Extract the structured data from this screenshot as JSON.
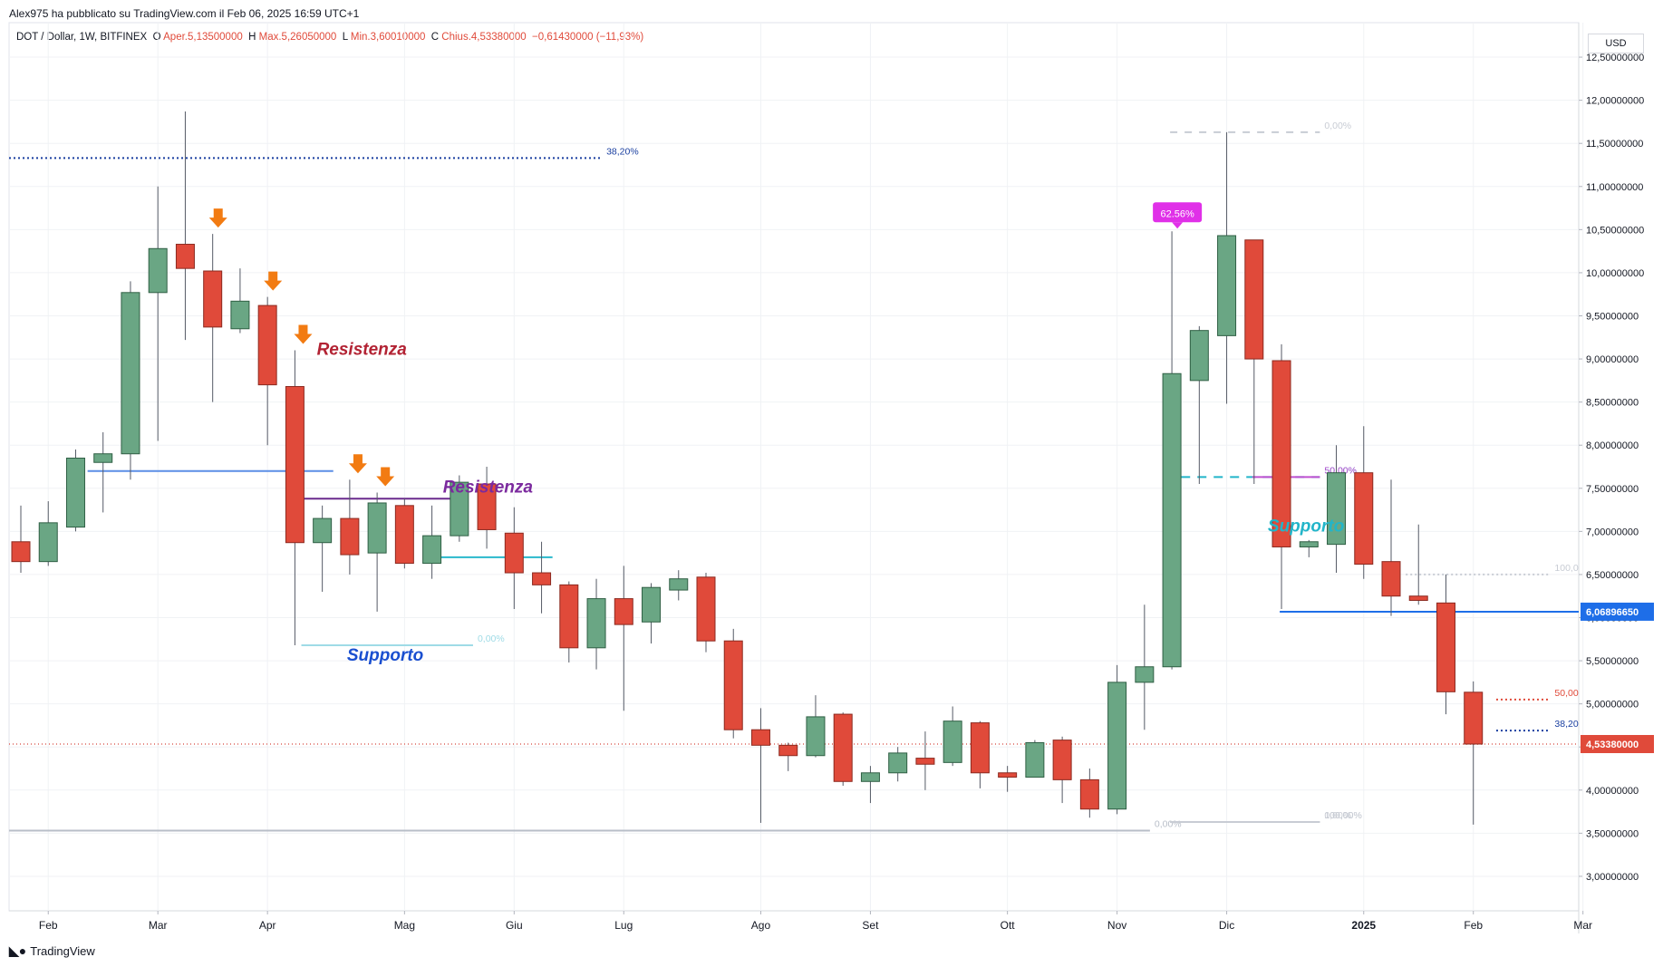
{
  "header": {
    "published": "Alex975 ha pubblicato su TradingView.com il Feb 06, 2025 16:59 UTC+1",
    "symbol": "DOT / Dollar, 1W, BITFINEX",
    "open_label": "O",
    "open": "Aper.5,13500000",
    "high_label": "H",
    "high": "Max.5,26050000",
    "low_label": "L",
    "low": "Min.3,60010000",
    "close_label": "C",
    "close": "Chius.4,53380000",
    "change": "−0,61430000 (−11,93%)"
  },
  "currency": "USD",
  "footer": {
    "brand": "TradingView",
    "logo": "tradingview-logo-icon"
  },
  "colors": {
    "up": "#6aa684",
    "down": "#e04a3a",
    "up_border": "#2f5f44",
    "down_border": "#8c2a20"
  },
  "chart_data": {
    "type": "candlestick",
    "title": "DOT / Dollar, 1W, BITFINEX",
    "ylabel": "USD",
    "ylim": [
      2.6,
      12.9
    ],
    "y_ticks": [
      "3,00000000",
      "3,50000000",
      "4,00000000",
      "4,50000000",
      "5,00000000",
      "5,50000000",
      "6,00000000",
      "6,50000000",
      "7,00000000",
      "7,50000000",
      "8,00000000",
      "8,50000000",
      "9,00000000",
      "9,50000000",
      "10,00000000",
      "10,50000000",
      "11,00000000",
      "11,50000000",
      "12,00000000",
      "12,50000000"
    ],
    "x_ticks": [
      {
        "label": "Feb",
        "bar": 1
      },
      {
        "label": "Mar",
        "bar": 5
      },
      {
        "label": "Apr",
        "bar": 9
      },
      {
        "label": "Mag",
        "bar": 14
      },
      {
        "label": "Giu",
        "bar": 18
      },
      {
        "label": "Lug",
        "bar": 22
      },
      {
        "label": "Ago",
        "bar": 27
      },
      {
        "label": "Set",
        "bar": 31
      },
      {
        "label": "Ott",
        "bar": 36
      },
      {
        "label": "Nov",
        "bar": 40
      },
      {
        "label": "Dic",
        "bar": 44
      },
      {
        "label": "2025",
        "bar": 49
      },
      {
        "label": "Feb",
        "bar": 53
      },
      {
        "label": "Mar",
        "bar": 57
      }
    ],
    "candles": [
      {
        "o": 6.88,
        "h": 7.3,
        "l": 6.52,
        "c": 6.65
      },
      {
        "o": 6.65,
        "h": 7.35,
        "l": 6.6,
        "c": 7.1
      },
      {
        "o": 7.05,
        "h": 7.95,
        "l": 7.0,
        "c": 7.85
      },
      {
        "o": 7.8,
        "h": 8.15,
        "l": 7.22,
        "c": 7.9
      },
      {
        "o": 7.9,
        "h": 9.9,
        "l": 7.6,
        "c": 9.77
      },
      {
        "o": 9.77,
        "h": 11.0,
        "l": 8.05,
        "c": 10.28
      },
      {
        "o": 10.33,
        "h": 11.87,
        "l": 9.22,
        "c": 10.05
      },
      {
        "o": 10.02,
        "h": 10.45,
        "l": 8.5,
        "c": 9.37
      },
      {
        "o": 9.35,
        "h": 10.05,
        "l": 9.3,
        "c": 9.67
      },
      {
        "o": 9.62,
        "h": 9.72,
        "l": 8.0,
        "c": 8.7
      },
      {
        "o": 8.68,
        "h": 9.1,
        "l": 5.68,
        "c": 6.87
      },
      {
        "o": 6.87,
        "h": 7.3,
        "l": 6.3,
        "c": 7.15
      },
      {
        "o": 7.15,
        "h": 7.6,
        "l": 6.5,
        "c": 6.73
      },
      {
        "o": 6.75,
        "h": 7.45,
        "l": 6.07,
        "c": 7.33
      },
      {
        "o": 7.3,
        "h": 7.38,
        "l": 6.57,
        "c": 6.63
      },
      {
        "o": 6.63,
        "h": 7.3,
        "l": 6.45,
        "c": 6.95
      },
      {
        "o": 6.95,
        "h": 7.65,
        "l": 6.88,
        "c": 7.57
      },
      {
        "o": 7.55,
        "h": 7.75,
        "l": 6.8,
        "c": 7.02
      },
      {
        "o": 6.98,
        "h": 7.28,
        "l": 6.1,
        "c": 6.52
      },
      {
        "o": 6.52,
        "h": 6.88,
        "l": 6.05,
        "c": 6.38
      },
      {
        "o": 6.38,
        "h": 6.42,
        "l": 5.48,
        "c": 5.65
      },
      {
        "o": 5.65,
        "h": 6.45,
        "l": 5.4,
        "c": 6.22
      },
      {
        "o": 6.22,
        "h": 6.6,
        "l": 4.92,
        "c": 5.92
      },
      {
        "o": 5.95,
        "h": 6.4,
        "l": 5.7,
        "c": 6.35
      },
      {
        "o": 6.32,
        "h": 6.55,
        "l": 6.2,
        "c": 6.45
      },
      {
        "o": 6.47,
        "h": 6.52,
        "l": 5.6,
        "c": 5.73
      },
      {
        "o": 5.73,
        "h": 5.87,
        "l": 4.6,
        "c": 4.7
      },
      {
        "o": 4.7,
        "h": 4.95,
        "l": 3.62,
        "c": 4.52
      },
      {
        "o": 4.52,
        "h": 4.55,
        "l": 4.22,
        "c": 4.4
      },
      {
        "o": 4.4,
        "h": 5.1,
        "l": 4.38,
        "c": 4.85
      },
      {
        "o": 4.88,
        "h": 4.9,
        "l": 4.05,
        "c": 4.1
      },
      {
        "o": 4.1,
        "h": 4.28,
        "l": 3.85,
        "c": 4.2
      },
      {
        "o": 4.2,
        "h": 4.5,
        "l": 4.1,
        "c": 4.43
      },
      {
        "o": 4.37,
        "h": 4.68,
        "l": 4.0,
        "c": 4.3
      },
      {
        "o": 4.32,
        "h": 4.97,
        "l": 4.28,
        "c": 4.8
      },
      {
        "o": 4.78,
        "h": 4.8,
        "l": 4.02,
        "c": 4.2
      },
      {
        "o": 4.2,
        "h": 4.28,
        "l": 3.98,
        "c": 4.15
      },
      {
        "o": 4.15,
        "h": 4.58,
        "l": 4.15,
        "c": 4.55
      },
      {
        "o": 4.58,
        "h": 4.62,
        "l": 3.85,
        "c": 4.12
      },
      {
        "o": 4.12,
        "h": 4.25,
        "l": 3.68,
        "c": 3.78
      },
      {
        "o": 3.78,
        "h": 5.45,
        "l": 3.72,
        "c": 5.25
      },
      {
        "o": 5.25,
        "h": 6.15,
        "l": 4.7,
        "c": 5.43
      },
      {
        "o": 5.43,
        "h": 10.48,
        "l": 5.4,
        "c": 8.83
      },
      {
        "o": 8.75,
        "h": 9.38,
        "l": 7.55,
        "c": 9.33
      },
      {
        "o": 9.27,
        "h": 11.63,
        "l": 8.48,
        "c": 10.43
      },
      {
        "o": 10.38,
        "h": 10.38,
        "l": 7.55,
        "c": 9.0
      },
      {
        "o": 8.98,
        "h": 9.17,
        "l": 6.1,
        "c": 6.82
      },
      {
        "o": 6.82,
        "h": 6.9,
        "l": 6.7,
        "c": 6.88
      },
      {
        "o": 6.85,
        "h": 8.0,
        "l": 6.52,
        "c": 7.68
      },
      {
        "o": 7.68,
        "h": 8.22,
        "l": 6.45,
        "c": 6.62
      },
      {
        "o": 6.65,
        "h": 7.6,
        "l": 6.02,
        "c": 6.25
      },
      {
        "o": 6.25,
        "h": 7.08,
        "l": 6.15,
        "c": 6.2
      },
      {
        "o": 6.17,
        "h": 6.5,
        "l": 4.88,
        "c": 5.14
      },
      {
        "o": 5.135,
        "h": 5.2605,
        "l": 3.6001,
        "c": 4.5338
      }
    ],
    "price_tags": [
      {
        "label": "6,06896650",
        "value": 6.0689665,
        "color": "#1e6ee8"
      },
      {
        "label": "4,53380000",
        "value": 4.5338,
        "color": "#e04a3a"
      }
    ],
    "annotations": [
      {
        "type": "text",
        "text": "Resistenza",
        "bar": 10.8,
        "y": 9.05,
        "color": "#b22233",
        "style": "bold-italic"
      },
      {
        "type": "text",
        "text": "Resistenza",
        "bar": 15.4,
        "y": 7.45,
        "color": "#7b2a9e",
        "style": "bold-italic"
      },
      {
        "type": "text",
        "text": "Supporto",
        "bar": 11.9,
        "y": 5.5,
        "color": "#1a4fd0",
        "style": "bold-italic"
      },
      {
        "type": "text",
        "text": "Supporto",
        "bar": 45.5,
        "y": 7.0,
        "color": "#22b5c9",
        "style": "bold-italic"
      },
      {
        "type": "badge",
        "text": "62.56%",
        "bar": 42.2,
        "y": 10.48,
        "color": "#e030e8"
      },
      {
        "type": "level",
        "text": "38,20%",
        "bar_from": -1,
        "bar_to": 21.2,
        "y": 11.33,
        "color": "#1a3fa0",
        "dash": "2,3"
      },
      {
        "type": "level",
        "text": "0,00%",
        "bar_from": -1,
        "bar_to": 41.2,
        "y": 3.53,
        "color": "#b8bec8",
        "dash": ""
      },
      {
        "type": "level",
        "text": "0,00%",
        "bar_from": 10.5,
        "bar_to": 16.5,
        "y": 5.68,
        "color": "#9fdbe6",
        "dash": ""
      },
      {
        "type": "level",
        "text": "0,00%",
        "bar_from": 42.2,
        "bar_to": 47.4,
        "y": 11.63,
        "color": "#c8ccd4",
        "dash": "8,8"
      },
      {
        "type": "level",
        "text": "0,00%",
        "bar_from": 42.2,
        "bar_to": 47.4,
        "y": 3.63,
        "color": "#c8ccd4",
        "dash": "8,8"
      },
      {
        "type": "level",
        "text": "100,00%",
        "bar_from": 42.2,
        "bar_to": 47.4,
        "y": 3.63,
        "color": "#c8ccd4",
        "dash": ""
      },
      {
        "type": "level",
        "text": "100,00%",
        "bar_from": 45.2,
        "bar_to": 47.4,
        "y": 3.63,
        "color": "#c8ccd4",
        "dash": ""
      },
      {
        "type": "level",
        "text": "50,00%",
        "bar_from": 42.6,
        "bar_to": 47.4,
        "y": 7.63,
        "color": "#22b5c9",
        "dash": "10,8"
      },
      {
        "type": "level",
        "text": "50,00%",
        "bar_from": 45.2,
        "bar_to": 47.4,
        "y": 7.63,
        "color": "#c04fd0",
        "dash": ""
      },
      {
        "type": "level",
        "text": "",
        "bar_from": 2.7,
        "bar_to": 11.4,
        "y": 7.7,
        "color": "#5b8ee6",
        "dash": ""
      },
      {
        "type": "level",
        "text": "",
        "bar_from": 10.6,
        "bar_to": 16.1,
        "y": 7.38,
        "color": "#6a2a8e",
        "dash": ""
      },
      {
        "type": "level",
        "text": "",
        "bar_from": 15.6,
        "bar_to": 19.4,
        "y": 6.7,
        "color": "#2ab8cc",
        "dash": ""
      },
      {
        "type": "level",
        "text": "",
        "bar_from": 46.2,
        "bar_to": 58.5,
        "y": 6.0689665,
        "color": "#1e6ee8",
        "dash": ""
      },
      {
        "type": "level",
        "text": "100,0",
        "bar_from": 50.8,
        "bar_to": 55.8,
        "y": 6.5,
        "color": "#c8ccd4",
        "dash": "2,3"
      },
      {
        "type": "level",
        "text": "50,00",
        "bar_from": 54.1,
        "bar_to": 55.8,
        "y": 5.05,
        "color": "#e04a3a",
        "dash": "2,3"
      },
      {
        "type": "level",
        "text": "38,20",
        "bar_from": 54.1,
        "bar_to": 55.8,
        "y": 4.69,
        "color": "#1a3fa0",
        "dash": "2,3"
      },
      {
        "type": "level",
        "text": "",
        "bar_from": -1,
        "bar_to": 58.5,
        "y": 4.5338,
        "color": "#e58a84",
        "dash": "1,3"
      }
    ],
    "arrows": [
      7.2,
      9.2,
      10.3,
      12.3,
      13.3
    ],
    "grid": true,
    "legend": "none"
  }
}
